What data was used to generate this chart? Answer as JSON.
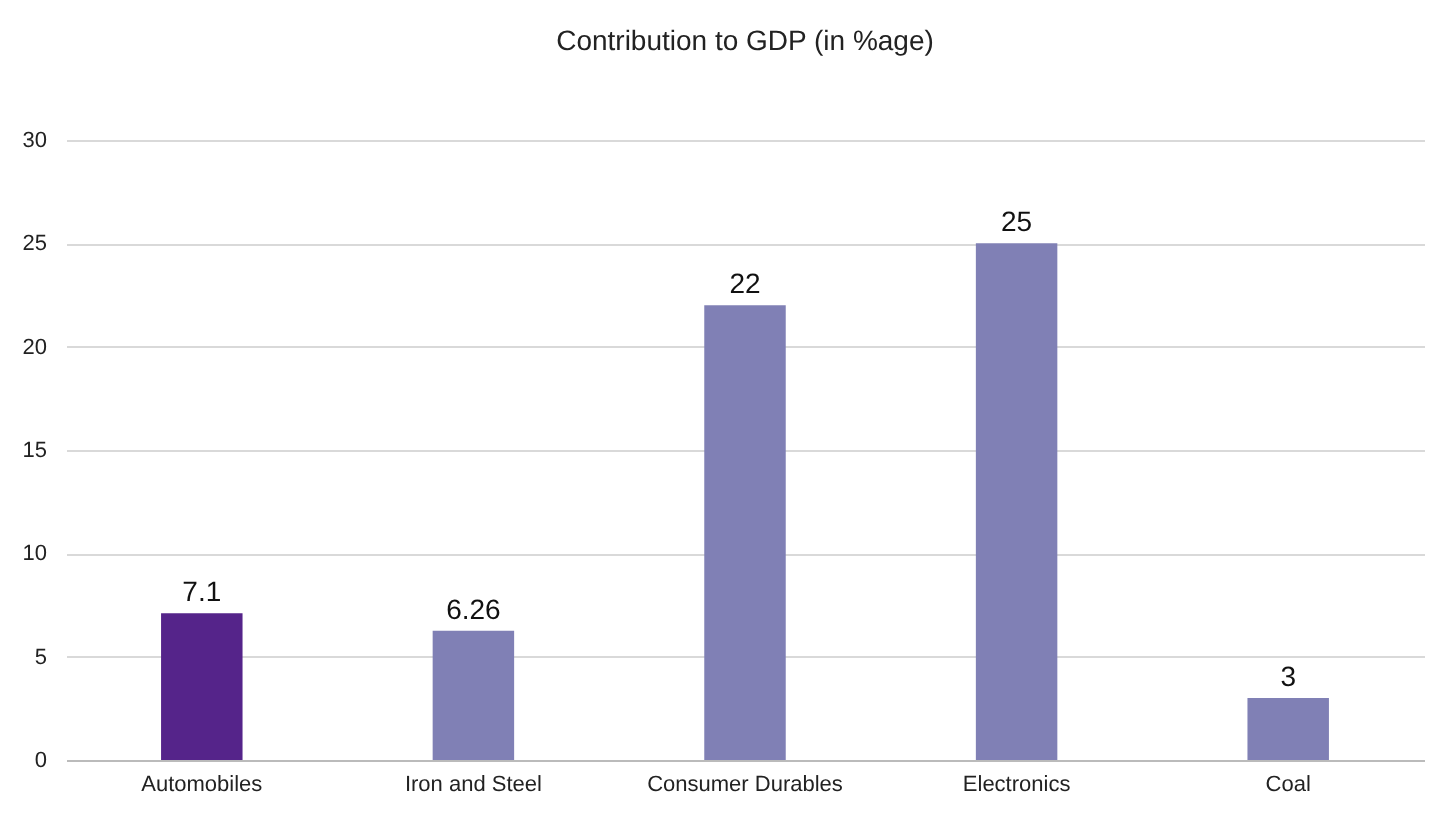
{
  "chart_data": {
    "type": "bar",
    "title": "Contribution to GDP (in %age)",
    "categories": [
      "Automobiles",
      "Iron and Steel",
      "Consumer Durables",
      "Electronics",
      "Coal"
    ],
    "values": [
      7.1,
      6.26,
      22,
      25,
      3
    ],
    "colors": [
      "#55248a",
      "#8080b5",
      "#8080b5",
      "#8080b5",
      "#8080b5"
    ],
    "ylim": [
      0,
      30
    ],
    "yticks": [
      0,
      5,
      10,
      15,
      20,
      25,
      30
    ],
    "grid": "y",
    "data_labels": true
  }
}
